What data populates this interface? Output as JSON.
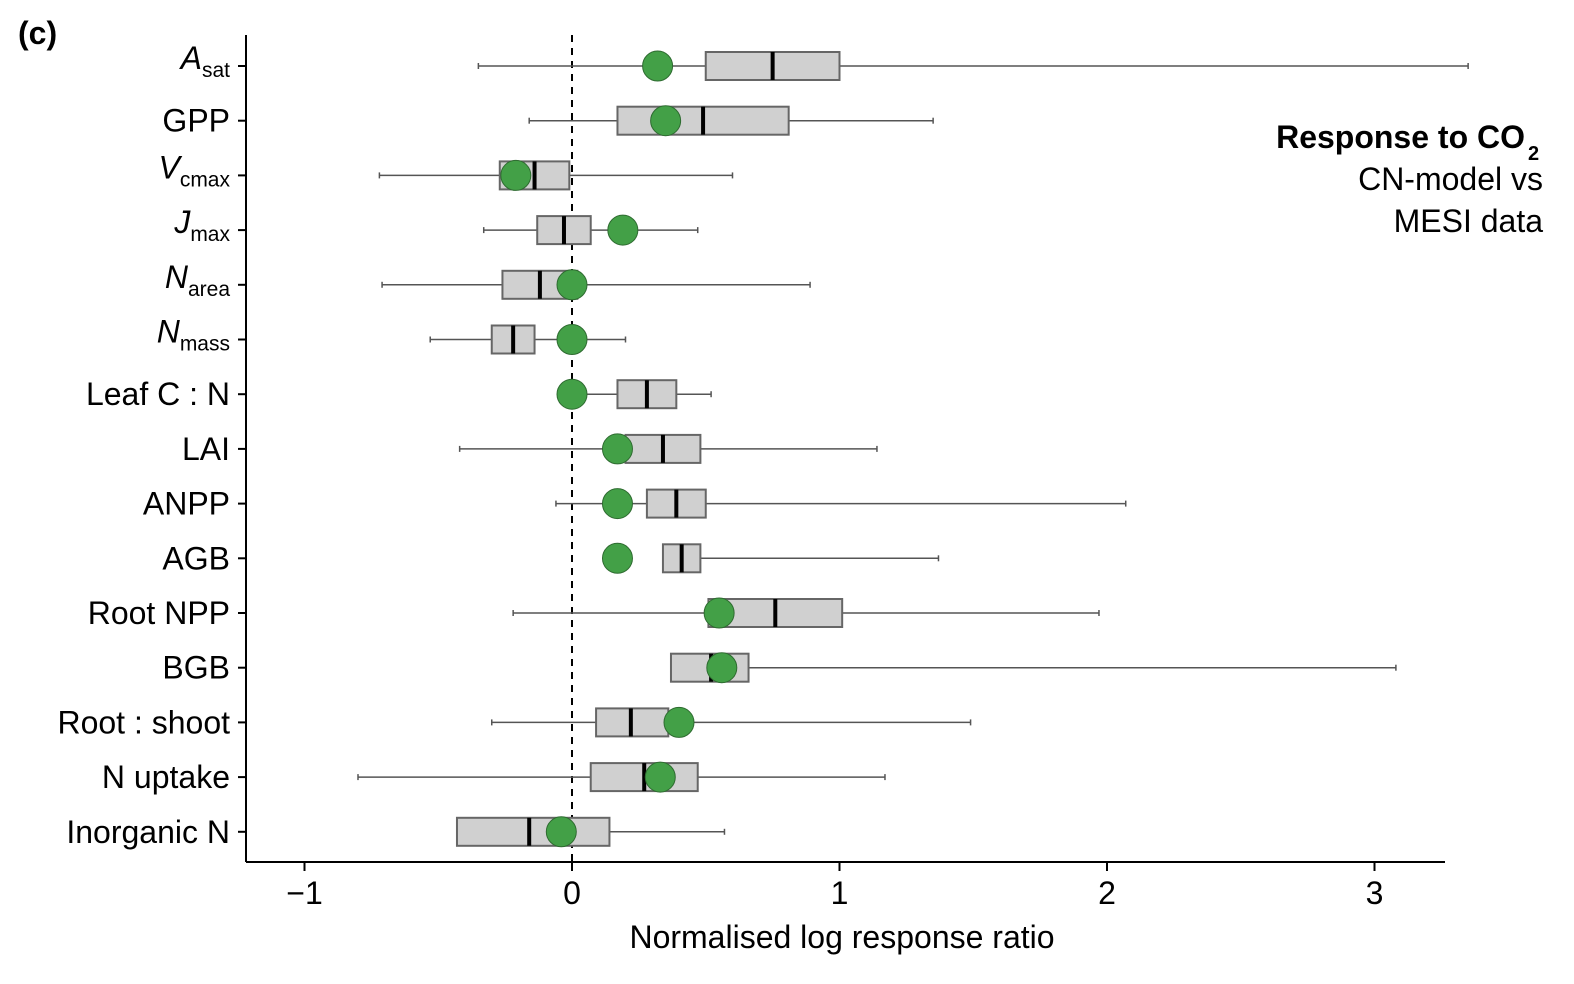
{
  "panel_label": "(c)",
  "legend": {
    "title_main": "Response to CO",
    "title_sub": "2",
    "line2": "CN-model vs",
    "line3": "MESI data"
  },
  "colors": {
    "box_fill": "#d0d0d0",
    "box_stroke": "#666666",
    "whisker": "#555555",
    "model_point": "#43a047",
    "model_point_stroke": "#2e6b30"
  },
  "chart_data": {
    "type": "boxplot",
    "xlabel": "Normalised log response ratio",
    "xlim": [
      -1.2,
      3.25
    ],
    "xticks": [
      -1,
      0,
      1,
      2,
      3
    ],
    "xtick_labels": [
      "−1",
      "0",
      "1",
      "2",
      "3"
    ],
    "reference_line": 0,
    "categories": [
      {
        "main": "A",
        "sub": "sat",
        "italic": true,
        "whisker_low": -0.35,
        "q1": 0.5,
        "median": 0.75,
        "q3": 1.0,
        "whisker_high": 3.35,
        "model": 0.32
      },
      {
        "main": "GPP",
        "sub": "",
        "italic": false,
        "whisker_low": -0.16,
        "q1": 0.17,
        "median": 0.49,
        "q3": 0.81,
        "whisker_high": 1.35,
        "model": 0.35
      },
      {
        "main": "V",
        "sub": "cmax",
        "italic": true,
        "whisker_low": -0.72,
        "q1": -0.27,
        "median": -0.14,
        "q3": -0.01,
        "whisker_high": 0.6,
        "model": -0.21
      },
      {
        "main": "J",
        "sub": "max",
        "italic": true,
        "whisker_low": -0.33,
        "q1": -0.13,
        "median": -0.03,
        "q3": 0.07,
        "whisker_high": 0.47,
        "model": 0.19
      },
      {
        "main": "N",
        "sub": "area",
        "italic": true,
        "whisker_low": -0.71,
        "q1": -0.26,
        "median": -0.12,
        "q3": 0.02,
        "whisker_high": 0.89,
        "model": 0.0
      },
      {
        "main": "N",
        "sub": "mass",
        "italic": true,
        "whisker_low": -0.53,
        "q1": -0.3,
        "median": -0.22,
        "q3": -0.14,
        "whisker_high": 0.2,
        "model": 0.0
      },
      {
        "main": "Leaf C : N",
        "sub": "",
        "italic": false,
        "whisker_low": 0.0,
        "q1": 0.17,
        "median": 0.28,
        "q3": 0.39,
        "whisker_high": 0.52,
        "model": 0.0
      },
      {
        "main": "LAI",
        "sub": "",
        "italic": false,
        "whisker_low": -0.42,
        "q1": 0.2,
        "median": 0.34,
        "q3": 0.48,
        "whisker_high": 1.14,
        "model": 0.17
      },
      {
        "main": "ANPP",
        "sub": "",
        "italic": false,
        "whisker_low": -0.06,
        "q1": 0.28,
        "median": 0.39,
        "q3": 0.5,
        "whisker_high": 2.07,
        "model": 0.17
      },
      {
        "main": "AGB",
        "sub": "",
        "italic": false,
        "whisker_low": 0.34,
        "q1": 0.34,
        "median": 0.41,
        "q3": 0.48,
        "whisker_high": 1.37,
        "model": 0.17
      },
      {
        "main": "Root NPP",
        "sub": "",
        "italic": false,
        "whisker_low": -0.22,
        "q1": 0.51,
        "median": 0.76,
        "q3": 1.01,
        "whisker_high": 1.97,
        "model": 0.55
      },
      {
        "main": "BGB",
        "sub": "",
        "italic": false,
        "whisker_low": 0.37,
        "q1": 0.37,
        "median": 0.52,
        "q3": 0.66,
        "whisker_high": 3.08,
        "model": 0.56
      },
      {
        "main": "Root : shoot",
        "sub": "",
        "italic": false,
        "whisker_low": -0.3,
        "q1": 0.09,
        "median": 0.22,
        "q3": 0.36,
        "whisker_high": 1.49,
        "model": 0.4
      },
      {
        "main": "N uptake",
        "sub": "",
        "italic": false,
        "whisker_low": -0.8,
        "q1": 0.07,
        "median": 0.27,
        "q3": 0.47,
        "whisker_high": 1.17,
        "model": 0.33
      },
      {
        "main": "Inorganic N",
        "sub": "",
        "italic": false,
        "whisker_low": -0.43,
        "q1": -0.43,
        "median": -0.16,
        "q3": 0.14,
        "whisker_high": 0.57,
        "model": -0.04
      }
    ]
  }
}
